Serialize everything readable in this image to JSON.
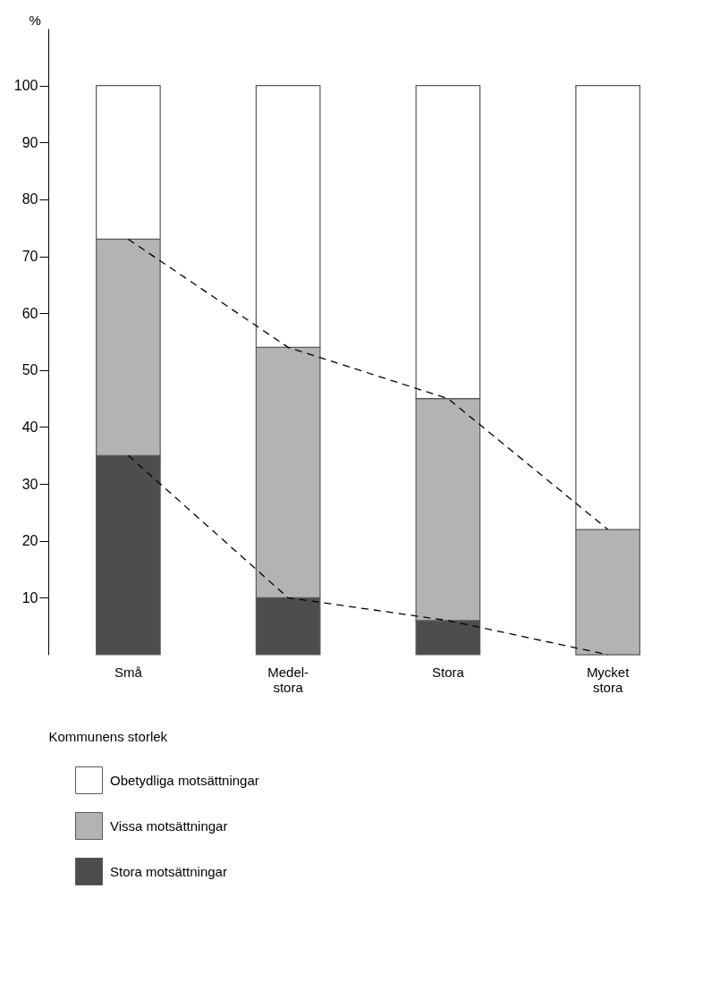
{
  "chart_data": {
    "type": "bar",
    "stacked": true,
    "xlabel": "Kommunens storlek",
    "ylabel": "%",
    "categories": [
      "Små",
      "Medel-\nstora",
      "Stora",
      "Mycket\nstora"
    ],
    "series": [
      {
        "name": "Stora motsättningar",
        "color": "#4d4d4d",
        "values": [
          35,
          10,
          6,
          0
        ]
      },
      {
        "name": "Vissa motsättningar",
        "color": "#b3b3b3",
        "values": [
          38,
          44,
          39,
          22
        ]
      },
      {
        "name": "Obetydliga motsättningar",
        "color": "#ffffff",
        "values": [
          27,
          46,
          55,
          78
        ]
      },
      {
        "type": "line",
        "line_style": "dashed",
        "color": "#000000",
        "values": [
          73,
          54,
          45,
          22
        ]
      },
      {
        "type": "line",
        "line_style": "dashed",
        "color": "#000000",
        "values": [
          35,
          10,
          6,
          0
        ]
      }
    ],
    "ylim": [
      0,
      110
    ],
    "yticks": [
      10,
      20,
      30,
      40,
      50,
      60,
      70,
      80,
      90,
      100
    ],
    "grid": false,
    "legend": "bottom left"
  }
}
